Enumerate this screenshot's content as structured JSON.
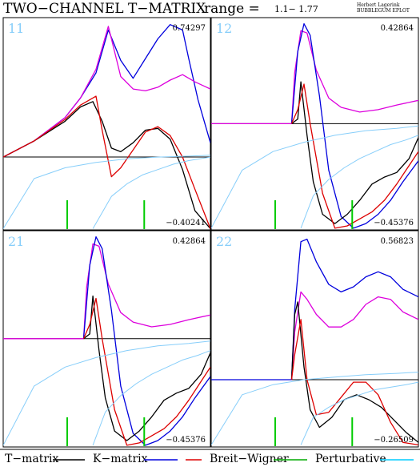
{
  "header": {
    "title": "TWO−CHANNEL T−MATRIX",
    "range_label": "range =",
    "range_value": "1.1−  1.77",
    "credit_line1": "Herbert Lagerink",
    "credit_line2": "BUBBLEGUM EPLOT"
  },
  "colors": {
    "tmatrix": "#000000",
    "kmatrix": "#0000dd",
    "breitwigner": "#dd0000",
    "perturbative": "#87cefa",
    "magenta": "#dd00dd",
    "green": "#00cc00",
    "panel_label": "#87cefa"
  },
  "legend": [
    {
      "label": "T−matrix",
      "color": "#000000"
    },
    {
      "label": "K−matrix",
      "color": "#0000dd"
    },
    {
      "label": "Breit−Wigner",
      "color": "#dd0000"
    },
    {
      "label": "Perturbative",
      "color": "#00aa00"
    }
  ],
  "legend_extra_swatch_color": "#00ccff",
  "chart_data": [
    {
      "type": "line",
      "panel": "11",
      "max_label": "0.74297",
      "min_label": "−0.40241",
      "xlim": [
        1.1,
        1.77
      ],
      "ylim": [
        -0.40241,
        0.74297
      ],
      "baseline": 0.0,
      "markers_x": [
        1.307,
        1.556
      ],
      "series": [
        {
          "color_key": "kmatrix",
          "x": [
            1.1,
            1.2,
            1.3,
            1.35,
            1.4,
            1.44,
            1.48,
            1.52,
            1.56,
            1.6,
            1.64,
            1.68,
            1.7,
            1.73,
            1.77
          ],
          "y": [
            0.0,
            0.09,
            0.22,
            0.33,
            0.47,
            0.71,
            0.54,
            0.44,
            0.55,
            0.66,
            0.74,
            0.71,
            0.55,
            0.32,
            0.08
          ]
        },
        {
          "color_key": "magenta",
          "x": [
            1.1,
            1.2,
            1.3,
            1.35,
            1.4,
            1.44,
            1.48,
            1.52,
            1.56,
            1.6,
            1.64,
            1.68,
            1.72,
            1.77
          ],
          "y": [
            0.0,
            0.09,
            0.22,
            0.33,
            0.49,
            0.73,
            0.45,
            0.38,
            0.37,
            0.39,
            0.43,
            0.46,
            0.42,
            0.38
          ]
        },
        {
          "color_key": "tmatrix",
          "x": [
            1.1,
            1.2,
            1.3,
            1.35,
            1.39,
            1.42,
            1.45,
            1.48,
            1.52,
            1.56,
            1.6,
            1.64,
            1.68,
            1.72,
            1.77
          ],
          "y": [
            0.0,
            0.09,
            0.2,
            0.28,
            0.31,
            0.2,
            0.05,
            0.03,
            0.08,
            0.15,
            0.16,
            0.1,
            -0.07,
            -0.3,
            -0.4
          ]
        },
        {
          "color_key": "breitwigner",
          "x": [
            1.1,
            1.2,
            1.3,
            1.35,
            1.4,
            1.42,
            1.45,
            1.48,
            1.52,
            1.56,
            1.6,
            1.64,
            1.68,
            1.72,
            1.77
          ],
          "y": [
            0.0,
            0.09,
            0.21,
            0.29,
            0.34,
            0.15,
            -0.11,
            -0.06,
            0.04,
            0.14,
            0.17,
            0.12,
            0.0,
            -0.18,
            -0.4
          ]
        },
        {
          "color_key": "perturbative",
          "x": [
            1.1,
            1.2,
            1.3,
            1.4,
            1.5,
            1.6,
            1.7,
            1.77
          ],
          "y": [
            -0.4,
            -0.12,
            -0.06,
            -0.03,
            -0.01,
            0.0,
            0.005,
            0.01
          ]
        },
        {
          "color_key": "perturbative",
          "x": [
            1.39,
            1.45,
            1.5,
            1.55,
            1.6,
            1.65,
            1.7,
            1.77
          ],
          "y": [
            -0.4,
            -0.22,
            -0.15,
            -0.1,
            -0.07,
            -0.04,
            -0.02,
            0.0
          ]
        }
      ]
    },
    {
      "type": "line",
      "panel": "12",
      "max_label": "0.42864",
      "min_label": "−0.45376",
      "xlim": [
        1.1,
        1.77
      ],
      "ylim": [
        -0.45376,
        0.42864
      ],
      "baseline": 0.0,
      "markers_x": [
        1.307,
        1.556
      ],
      "series": [
        {
          "color_key": "magenta",
          "x": [
            1.1,
            1.36,
            1.37,
            1.39,
            1.41,
            1.44,
            1.48,
            1.52,
            1.58,
            1.64,
            1.7,
            1.77
          ],
          "y": [
            0.0,
            0.0,
            0.22,
            0.4,
            0.39,
            0.23,
            0.11,
            0.07,
            0.05,
            0.06,
            0.08,
            0.1
          ]
        },
        {
          "color_key": "kmatrix",
          "x": [
            1.36,
            1.38,
            1.4,
            1.42,
            1.45,
            1.48,
            1.52,
            1.56,
            1.6,
            1.64,
            1.68,
            1.72,
            1.77
          ],
          "y": [
            0.0,
            0.31,
            0.43,
            0.38,
            0.12,
            -0.2,
            -0.4,
            -0.45,
            -0.43,
            -0.39,
            -0.33,
            -0.25,
            -0.16
          ]
        },
        {
          "color_key": "tmatrix",
          "x": [
            1.36,
            1.38,
            1.39,
            1.41,
            1.43,
            1.46,
            1.5,
            1.54,
            1.58,
            1.62,
            1.66,
            1.7,
            1.74,
            1.77
          ],
          "y": [
            0.0,
            0.02,
            0.18,
            -0.05,
            -0.25,
            -0.39,
            -0.43,
            -0.39,
            -0.33,
            -0.26,
            -0.23,
            -0.21,
            -0.15,
            -0.06
          ]
        },
        {
          "color_key": "breitwigner",
          "x": [
            1.36,
            1.38,
            1.4,
            1.42,
            1.46,
            1.5,
            1.54,
            1.58,
            1.62,
            1.66,
            1.7,
            1.74,
            1.77
          ],
          "y": [
            0.0,
            0.06,
            0.17,
            0.0,
            -0.3,
            -0.45,
            -0.44,
            -0.41,
            -0.38,
            -0.33,
            -0.26,
            -0.18,
            -0.12
          ]
        },
        {
          "color_key": "perturbative",
          "x": [
            1.1,
            1.2,
            1.3,
            1.4,
            1.5,
            1.6,
            1.7,
            1.77
          ],
          "y": [
            -0.45,
            -0.2,
            -0.12,
            -0.08,
            -0.05,
            -0.03,
            -0.02,
            -0.01
          ]
        },
        {
          "color_key": "perturbative",
          "x": [
            1.39,
            1.43,
            1.48,
            1.53,
            1.58,
            1.63,
            1.68,
            1.73,
            1.77
          ],
          "y": [
            -0.45,
            -0.31,
            -0.24,
            -0.19,
            -0.15,
            -0.12,
            -0.09,
            -0.07,
            -0.05
          ]
        }
      ]
    },
    {
      "type": "line",
      "panel": "21",
      "max_label": "0.42864",
      "min_label": "−0.45376",
      "xlim": [
        1.1,
        1.77
      ],
      "ylim": [
        -0.45376,
        0.42864
      ],
      "baseline": 0.0,
      "markers_x": [
        1.307,
        1.556
      ],
      "series": [
        {
          "color_key": "magenta",
          "x": [
            1.1,
            1.36,
            1.37,
            1.39,
            1.41,
            1.44,
            1.48,
            1.52,
            1.58,
            1.64,
            1.7,
            1.77
          ],
          "y": [
            0.0,
            0.0,
            0.22,
            0.4,
            0.39,
            0.23,
            0.11,
            0.07,
            0.05,
            0.06,
            0.08,
            0.1
          ]
        },
        {
          "color_key": "kmatrix",
          "x": [
            1.36,
            1.38,
            1.4,
            1.42,
            1.45,
            1.48,
            1.52,
            1.56,
            1.6,
            1.64,
            1.68,
            1.72,
            1.77
          ],
          "y": [
            0.0,
            0.31,
            0.43,
            0.38,
            0.12,
            -0.2,
            -0.4,
            -0.45,
            -0.43,
            -0.39,
            -0.33,
            -0.25,
            -0.16
          ]
        },
        {
          "color_key": "tmatrix",
          "x": [
            1.36,
            1.38,
            1.39,
            1.41,
            1.43,
            1.46,
            1.5,
            1.54,
            1.58,
            1.62,
            1.66,
            1.7,
            1.74,
            1.77
          ],
          "y": [
            0.0,
            0.02,
            0.18,
            -0.05,
            -0.25,
            -0.39,
            -0.43,
            -0.39,
            -0.33,
            -0.26,
            -0.23,
            -0.21,
            -0.15,
            -0.06
          ]
        },
        {
          "color_key": "breitwigner",
          "x": [
            1.36,
            1.38,
            1.4,
            1.42,
            1.46,
            1.5,
            1.54,
            1.58,
            1.62,
            1.66,
            1.7,
            1.74,
            1.77
          ],
          "y": [
            0.0,
            0.06,
            0.17,
            0.0,
            -0.3,
            -0.45,
            -0.44,
            -0.41,
            -0.38,
            -0.33,
            -0.26,
            -0.18,
            -0.12
          ]
        },
        {
          "color_key": "perturbative",
          "x": [
            1.1,
            1.2,
            1.3,
            1.4,
            1.5,
            1.6,
            1.7,
            1.77
          ],
          "y": [
            -0.45,
            -0.2,
            -0.12,
            -0.08,
            -0.05,
            -0.03,
            -0.02,
            -0.01
          ]
        },
        {
          "color_key": "perturbative",
          "x": [
            1.39,
            1.43,
            1.48,
            1.53,
            1.58,
            1.63,
            1.68,
            1.73,
            1.77
          ],
          "y": [
            -0.45,
            -0.31,
            -0.24,
            -0.19,
            -0.15,
            -0.12,
            -0.09,
            -0.07,
            -0.05
          ]
        }
      ]
    },
    {
      "type": "line",
      "panel": "22",
      "max_label": "0.56823",
      "min_label": "−0.26509",
      "xlim": [
        1.1,
        1.77
      ],
      "ylim": [
        -0.26509,
        0.56823
      ],
      "baseline": 0.0,
      "markers_x": [
        1.307,
        1.556
      ],
      "series": [
        {
          "color_key": "kmatrix",
          "x": [
            1.1,
            1.36,
            1.37,
            1.39,
            1.41,
            1.44,
            1.48,
            1.52,
            1.56,
            1.6,
            1.64,
            1.68,
            1.72,
            1.77
          ],
          "y": [
            0.0,
            0.0,
            0.28,
            0.55,
            0.56,
            0.47,
            0.38,
            0.35,
            0.37,
            0.41,
            0.43,
            0.41,
            0.36,
            0.33
          ]
        },
        {
          "color_key": "magenta",
          "x": [
            1.36,
            1.37,
            1.39,
            1.41,
            1.44,
            1.48,
            1.52,
            1.56,
            1.6,
            1.64,
            1.68,
            1.72,
            1.77
          ],
          "y": [
            0.0,
            0.19,
            0.35,
            0.32,
            0.26,
            0.21,
            0.21,
            0.24,
            0.3,
            0.33,
            0.32,
            0.27,
            0.24
          ]
        },
        {
          "color_key": "tmatrix",
          "x": [
            1.36,
            1.37,
            1.38,
            1.4,
            1.42,
            1.45,
            1.49,
            1.53,
            1.57,
            1.61,
            1.65,
            1.69,
            1.73,
            1.77
          ],
          "y": [
            0.0,
            0.26,
            0.31,
            0.05,
            -0.12,
            -0.19,
            -0.15,
            -0.08,
            -0.06,
            -0.08,
            -0.11,
            -0.16,
            -0.21,
            -0.25
          ]
        },
        {
          "color_key": "breitwigner",
          "x": [
            1.36,
            1.37,
            1.39,
            1.41,
            1.44,
            1.48,
            1.52,
            1.56,
            1.6,
            1.64,
            1.68,
            1.72,
            1.77
          ],
          "y": [
            0.0,
            0.1,
            0.24,
            0.0,
            -0.14,
            -0.13,
            -0.07,
            -0.01,
            -0.01,
            -0.06,
            -0.17,
            -0.25,
            -0.26
          ]
        },
        {
          "color_key": "perturbative",
          "x": [
            1.1,
            1.2,
            1.3,
            1.4,
            1.5,
            1.6,
            1.7,
            1.77
          ],
          "y": [
            -0.26,
            -0.06,
            -0.02,
            0.0,
            0.01,
            0.02,
            0.025,
            0.03
          ]
        },
        {
          "color_key": "perturbative",
          "x": [
            1.39,
            1.43,
            1.48,
            1.53,
            1.58,
            1.63,
            1.68,
            1.73,
            1.77
          ],
          "y": [
            -0.26,
            -0.15,
            -0.11,
            -0.08,
            -0.06,
            -0.04,
            -0.03,
            -0.02,
            -0.01
          ]
        }
      ]
    }
  ]
}
